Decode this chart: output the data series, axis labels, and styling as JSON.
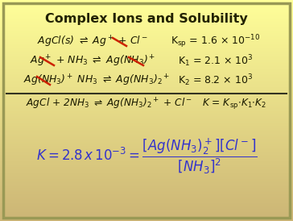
{
  "title": "Complex Ions and Solubility",
  "bg_color_top": "#ffff99",
  "bg_color_bottom": "#d0b87a",
  "border_color": "#999955",
  "title_color": "#222200",
  "text_color": "#1a1a00",
  "eq_color": "#3333cc",
  "strike_color": "#cc2200",
  "figsize": [
    3.64,
    2.74
  ],
  "dpi": 100
}
